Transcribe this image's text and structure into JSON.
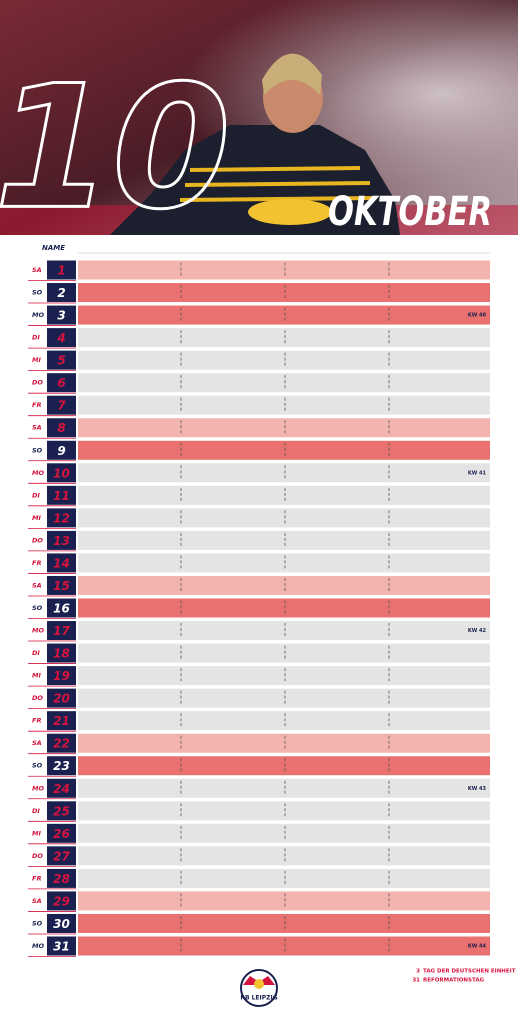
{
  "header": {
    "month_number": "10",
    "month": "OKTOBER"
  },
  "table": {
    "column_header": "NAME",
    "rows": [
      {
        "weekday": "SA",
        "day": "1"
      },
      {
        "weekday": "SO",
        "day": "2"
      },
      {
        "weekday": "MO",
        "day": "3",
        "week": "KW 40"
      },
      {
        "weekday": "DI",
        "day": "4"
      },
      {
        "weekday": "MI",
        "day": "5"
      },
      {
        "weekday": "DO",
        "day": "6"
      },
      {
        "weekday": "FR",
        "day": "7"
      },
      {
        "weekday": "SA",
        "day": "8"
      },
      {
        "weekday": "SO",
        "day": "9"
      },
      {
        "weekday": "MO",
        "day": "10",
        "week": "KW 41"
      },
      {
        "weekday": "DI",
        "day": "11"
      },
      {
        "weekday": "MI",
        "day": "12"
      },
      {
        "weekday": "DO",
        "day": "13"
      },
      {
        "weekday": "FR",
        "day": "14"
      },
      {
        "weekday": "SA",
        "day": "15"
      },
      {
        "weekday": "SO",
        "day": "16"
      },
      {
        "weekday": "MO",
        "day": "17",
        "week": "KW 42"
      },
      {
        "weekday": "DI",
        "day": "18"
      },
      {
        "weekday": "MI",
        "day": "19"
      },
      {
        "weekday": "DO",
        "day": "20"
      },
      {
        "weekday": "FR",
        "day": "21"
      },
      {
        "weekday": "SA",
        "day": "22"
      },
      {
        "weekday": "SO",
        "day": "23"
      },
      {
        "weekday": "MO",
        "day": "24",
        "week": "KW 43"
      },
      {
        "weekday": "DI",
        "day": "25"
      },
      {
        "weekday": "MI",
        "day": "26"
      },
      {
        "weekday": "DO",
        "day": "27"
      },
      {
        "weekday": "FR",
        "day": "28"
      },
      {
        "weekday": "SA",
        "day": "29"
      },
      {
        "weekday": "SO",
        "day": "30"
      },
      {
        "weekday": "MO",
        "day": "31",
        "week": "KW 44"
      }
    ]
  },
  "notes": [
    {
      "day": "3",
      "text": "TAG DER DEUTSCHEN EINHEIT"
    },
    {
      "day": "31",
      "text": "REFORMATIONSTAG"
    }
  ],
  "logo": "RB LEIPZIG"
}
